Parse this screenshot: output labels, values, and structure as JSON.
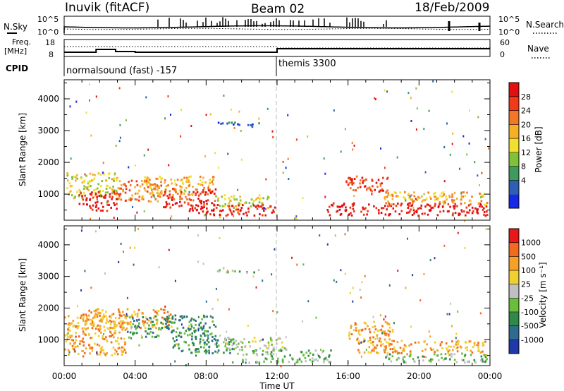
{
  "header": {
    "station": "Inuvik (fitACF)",
    "beam": "Beam 02",
    "date": "18/Feb/2009"
  },
  "nsky_panel": {
    "left_label": "N.Sky",
    "right_label": "N.Search",
    "y_ticks_left": [
      "10^5",
      "10^0"
    ],
    "y_ticks_right": [
      "10^5",
      "10^0"
    ]
  },
  "freq_panel": {
    "left_label_1": "Freq.",
    "left_label_2": "[MHz]",
    "right_label": "Nave",
    "y_ticks_left": [
      "18",
      "8"
    ],
    "y_ticks_right": [
      "60",
      "0"
    ]
  },
  "cpid": {
    "label": "CPID",
    "segments": [
      {
        "start_hour": 0,
        "text": "normalsound (fast) -157"
      },
      {
        "start_hour": 12,
        "text": "themis 3300"
      }
    ]
  },
  "chart_data": [
    {
      "type": "heatmap",
      "panel": "power",
      "ylabel": "Slant Range [km]",
      "y_ticks": [
        1000,
        2000,
        3000,
        4000
      ],
      "ylim": [
        180,
        4600
      ],
      "xlim_hours": [
        0,
        24
      ],
      "colorbar": {
        "label": "Power [dB]",
        "ticks": [
          "28",
          "24",
          "20",
          "16",
          "12",
          "8",
          "4"
        ],
        "colors": [
          "#1828e8",
          "#2f5fb4",
          "#3f9a5f",
          "#7fc23a",
          "#f0e030",
          "#f5b028",
          "#f07828",
          "#f03a1a",
          "#e21010"
        ]
      },
      "echo_regions": [
        {
          "t0": 0.0,
          "t1": 3.0,
          "r0": 900,
          "r1": 1700,
          "level": 4
        },
        {
          "t0": 0.8,
          "t1": 3.0,
          "r0": 500,
          "r1": 1100,
          "level": 8
        },
        {
          "t0": 3.0,
          "t1": 5.5,
          "r0": 800,
          "r1": 1500,
          "level": 6
        },
        {
          "t0": 4.5,
          "t1": 8.5,
          "r0": 1000,
          "r1": 1600,
          "level": 5
        },
        {
          "t0": 5.5,
          "t1": 8.5,
          "r0": 600,
          "r1": 1200,
          "level": 7
        },
        {
          "t0": 8.5,
          "t1": 11.5,
          "r0": 600,
          "r1": 1000,
          "level": 4
        },
        {
          "t0": 7.0,
          "t1": 12.0,
          "r0": 350,
          "r1": 700,
          "level": 8
        },
        {
          "t0": 8.6,
          "t1": 11.0,
          "r0": 3150,
          "r1": 3300,
          "level": 1
        },
        {
          "t0": 15.8,
          "t1": 18.2,
          "r0": 1100,
          "r1": 1600,
          "level": 7
        },
        {
          "t0": 14.8,
          "t1": 23.8,
          "r0": 350,
          "r1": 750,
          "level": 8
        },
        {
          "t0": 18.0,
          "t1": 23.8,
          "r0": 700,
          "r1": 1100,
          "level": 5
        }
      ]
    },
    {
      "type": "heatmap",
      "panel": "velocity",
      "ylabel": "Slant Range [km]",
      "xlabel": "Time UT",
      "x_ticks": [
        "00:00",
        "04:00",
        "08:00",
        "12:00",
        "16:00",
        "20:00",
        "00:00"
      ],
      "y_ticks": [
        1000,
        2000,
        3000,
        4000
      ],
      "ylim": [
        180,
        4600
      ],
      "xlim_hours": [
        0,
        24
      ],
      "colorbar": {
        "label": "Velocity [m s⁻¹]",
        "ticks": [
          "1000",
          "500",
          "100",
          "25",
          "-25",
          "-100",
          "-500",
          "-1000"
        ],
        "colors": [
          "#1f3aa8",
          "#2f6b8f",
          "#2f8a4a",
          "#6abf3a",
          "#c0c0c0",
          "#f0d030",
          "#f5a028",
          "#f06a20",
          "#e81818"
        ]
      },
      "echo_regions": [
        {
          "t0": 0.0,
          "t1": 3.5,
          "r0": 500,
          "r1": 1800,
          "level": 6
        },
        {
          "t0": 1.0,
          "t1": 6.0,
          "r0": 1400,
          "r1": 2000,
          "level": 6
        },
        {
          "t0": 3.5,
          "t1": 8.5,
          "r0": 1100,
          "r1": 1800,
          "level": 2
        },
        {
          "t0": 6.0,
          "t1": 9.5,
          "r0": 600,
          "r1": 1100,
          "level": 2
        },
        {
          "t0": 9.0,
          "t1": 12.5,
          "r0": 700,
          "r1": 1100,
          "level": 4
        },
        {
          "t0": 10.0,
          "t1": 15.0,
          "r0": 300,
          "r1": 700,
          "level": 3
        },
        {
          "t0": 8.6,
          "t1": 11.0,
          "r0": 3150,
          "r1": 3300,
          "level": 3
        },
        {
          "t0": 16.0,
          "t1": 18.5,
          "r0": 1000,
          "r1": 1600,
          "level": 6
        },
        {
          "t0": 16.5,
          "t1": 23.8,
          "r0": 600,
          "r1": 1000,
          "level": 6
        },
        {
          "t0": 18.0,
          "t1": 23.8,
          "r0": 300,
          "r1": 600,
          "level": 3
        }
      ]
    }
  ]
}
